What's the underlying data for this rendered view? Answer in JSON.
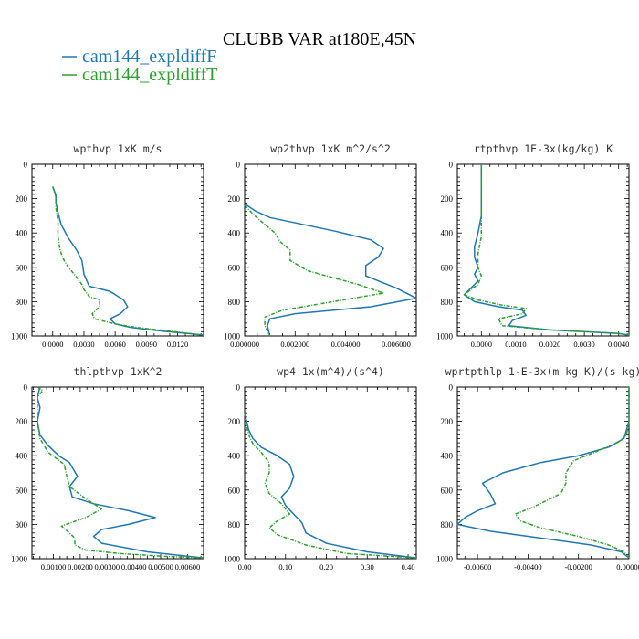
{
  "figure": {
    "title": "CLUBB VAR at180E,45N",
    "legend": [
      {
        "label": "cam144_expldiffF",
        "color": "#1f77b4"
      },
      {
        "label": "cam144_expldiffT",
        "color": "#2ca02c"
      }
    ]
  },
  "chart_data": [
    {
      "type": "line",
      "title": "wpthvp   1xK m/s",
      "xlim": [
        -0.002,
        0.0145
      ],
      "ylim": [
        0,
        1000
      ],
      "xticks": [
        0.0,
        0.003,
        0.006,
        0.009,
        0.012
      ],
      "xticklabels": [
        "0.0000",
        "0.0030",
        "0.0060",
        "0.0090",
        "0.0120"
      ],
      "yticks": [
        0,
        200,
        400,
        600,
        800,
        1000
      ],
      "yticklabels": [
        "0",
        "200",
        "400",
        "600",
        "800",
        "1000"
      ],
      "series": [
        {
          "name": "cam144_expldiffF",
          "x": [
            0.0,
            0.0003,
            0.0003,
            0.0005,
            0.0008,
            0.0015,
            0.0023,
            0.0028,
            0.003,
            0.0035,
            0.0055,
            0.0068,
            0.0072,
            0.0065,
            0.0055,
            0.006,
            0.0075,
            0.0095,
            0.011,
            0.013,
            0.0145
          ],
          "y": [
            130,
            180,
            220,
            280,
            350,
            430,
            500,
            560,
            640,
            710,
            740,
            790,
            830,
            870,
            900,
            930,
            950,
            965,
            975,
            985,
            995
          ]
        },
        {
          "name": "cam144_expldiffT",
          "x": [
            0.0,
            0.0003,
            0.0003,
            0.0005,
            0.0005,
            0.0007,
            0.001,
            0.0015,
            0.0022,
            0.0028,
            0.003,
            0.0035,
            0.0045,
            0.0045,
            0.0038,
            0.004,
            0.006,
            0.008,
            0.011,
            0.0145
          ],
          "y": [
            130,
            190,
            250,
            330,
            420,
            500,
            550,
            600,
            650,
            700,
            730,
            770,
            790,
            830,
            870,
            900,
            930,
            950,
            970,
            995
          ]
        }
      ]
    },
    {
      "type": "line",
      "title": "wp2thvp   1xK m^2/s^2",
      "xlim": [
        0.0,
        0.0068
      ],
      "ylim": [
        0,
        1000
      ],
      "xticks": [
        0.0,
        0.002,
        0.004,
        0.006
      ],
      "xticklabels": [
        "0.000000",
        "0.002000",
        "0.004000",
        "0.006000"
      ],
      "yticks": [
        0,
        200,
        400,
        600,
        800,
        1000
      ],
      "yticklabels": [
        "0",
        "200",
        "400",
        "600",
        "800",
        "1000"
      ],
      "series": [
        {
          "name": "cam144_expldiffF",
          "x": [
            0.0,
            0.0004,
            0.001,
            0.0023,
            0.0036,
            0.005,
            0.0055,
            0.0053,
            0.0048,
            0.0048,
            0.006,
            0.0068,
            0.005,
            0.002,
            0.001,
            0.0009,
            0.001
          ],
          "y": [
            230,
            270,
            310,
            350,
            390,
            440,
            490,
            540,
            590,
            650,
            720,
            780,
            830,
            870,
            900,
            940,
            1000
          ]
        },
        {
          "name": "cam144_expldiffT",
          "x": [
            0.0,
            0.0004,
            0.0008,
            0.0012,
            0.0014,
            0.0018,
            0.0018,
            0.0025,
            0.0045,
            0.0055,
            0.0035,
            0.0015,
            0.0008,
            0.0008,
            0.001
          ],
          "y": [
            240,
            300,
            350,
            400,
            450,
            500,
            560,
            620,
            700,
            750,
            800,
            850,
            890,
            940,
            1000
          ]
        }
      ]
    },
    {
      "type": "line",
      "title": "rtpthvp   1E-3x(kg/kg) K",
      "xlim": [
        -0.0007,
        0.0043
      ],
      "ylim": [
        0,
        1000
      ],
      "xticks": [
        0.0,
        0.001,
        0.002,
        0.003,
        0.004
      ],
      "xticklabels": [
        "0.0000",
        "0.0010",
        "0.0020",
        "0.0030",
        "0.0040"
      ],
      "yticks": [
        0,
        200,
        400,
        600,
        800,
        1000
      ],
      "yticklabels": [
        "0",
        "200",
        "400",
        "600",
        "800",
        "1000"
      ],
      "series": [
        {
          "name": "cam144_expldiffF",
          "x": [
            0.0,
            0.0,
            0.0,
            -0.0001,
            -0.0002,
            -0.0002,
            -0.0001,
            -0.0002,
            -0.0001,
            -0.0003,
            -0.0005,
            -0.0002,
            0.0005,
            0.0012,
            0.0013,
            0.0009,
            0.0008,
            0.002,
            0.004,
            0.0043
          ],
          "y": [
            0,
            150,
            300,
            400,
            480,
            540,
            600,
            640,
            680,
            720,
            760,
            800,
            830,
            850,
            880,
            910,
            940,
            965,
            985,
            995
          ]
        },
        {
          "name": "cam144_expldiffT",
          "x": [
            0.0,
            0.0,
            0.0,
            0.0,
            -0.0001,
            -0.0001,
            0.0,
            -0.0001,
            -0.0003,
            -0.0005,
            -0.0001,
            0.0006,
            0.0013,
            0.0012,
            0.0005,
            0.0006,
            0.002,
            0.004,
            0.0043
          ],
          "y": [
            0,
            150,
            300,
            420,
            520,
            600,
            650,
            700,
            730,
            760,
            790,
            820,
            840,
            870,
            900,
            940,
            965,
            985,
            995
          ]
        }
      ]
    },
    {
      "type": "line",
      "title": "thlpthvp   1xK^2",
      "xlim": [
        0.0002,
        0.0066
      ],
      "ylim": [
        0,
        1000
      ],
      "xticks": [
        0.001,
        0.002,
        0.003,
        0.004,
        0.005,
        0.006
      ],
      "xticklabels": [
        "0.00100",
        "0.00200",
        "0.00300",
        "0.00400",
        "0.00500",
        "0.00600"
      ],
      "yticks": [
        0,
        200,
        400,
        600,
        800,
        1000
      ],
      "yticklabels": [
        "0",
        "200",
        "400",
        "600",
        "800",
        "1000"
      ],
      "series": [
        {
          "name": "cam144_expldiffF",
          "x": [
            0.0005,
            0.0004,
            0.0005,
            0.0004,
            0.0005,
            0.0008,
            0.0012,
            0.0016,
            0.0019,
            0.0016,
            0.0017,
            0.0025,
            0.0038,
            0.0048,
            0.0038,
            0.0028,
            0.0025,
            0.0028,
            0.0045,
            0.0066
          ],
          "y": [
            0,
            60,
            120,
            200,
            280,
            340,
            400,
            440,
            520,
            580,
            640,
            680,
            720,
            760,
            800,
            830,
            870,
            910,
            960,
            995
          ]
        },
        {
          "name": "cam144_expldiffT",
          "x": [
            0.0004,
            0.0006,
            0.0004,
            0.0004,
            0.0005,
            0.0008,
            0.0014,
            0.0015,
            0.0016,
            0.0022,
            0.0028,
            0.0022,
            0.0013,
            0.0016,
            0.0018,
            0.0018,
            0.0022,
            0.0035,
            0.005,
            0.0066
          ],
          "y": [
            0,
            20,
            60,
            200,
            300,
            380,
            450,
            520,
            580,
            650,
            710,
            760,
            810,
            850,
            880,
            920,
            950,
            970,
            985,
            995
          ]
        }
      ]
    },
    {
      "type": "line",
      "title": "wp4   1x(m^4)/(s^4)",
      "xlim": [
        0.0,
        0.42
      ],
      "ylim": [
        0,
        1000
      ],
      "xticks": [
        0.0,
        0.1,
        0.2,
        0.3,
        0.4
      ],
      "xticklabels": [
        "0.00",
        "0.10",
        "0.20",
        "0.30",
        "0.40"
      ],
      "yticks": [
        0,
        200,
        400,
        600,
        800,
        1000
      ],
      "yticklabels": [
        "0",
        "200",
        "400",
        "600",
        "800",
        "1000"
      ],
      "series": [
        {
          "name": "cam144_expldiffF",
          "x": [
            0.0,
            0.005,
            0.01,
            0.02,
            0.04,
            0.08,
            0.11,
            0.12,
            0.11,
            0.09,
            0.1,
            0.12,
            0.14,
            0.15,
            0.2,
            0.3,
            0.42
          ],
          "y": [
            150,
            200,
            250,
            300,
            350,
            400,
            450,
            520,
            590,
            640,
            690,
            740,
            790,
            850,
            910,
            960,
            995
          ]
        },
        {
          "name": "cam144_expldiffT",
          "x": [
            0.0,
            0.005,
            0.01,
            0.02,
            0.04,
            0.06,
            0.06,
            0.05,
            0.06,
            0.09,
            0.11,
            0.08,
            0.06,
            0.08,
            0.15,
            0.25,
            0.42
          ],
          "y": [
            150,
            220,
            280,
            330,
            380,
            440,
            500,
            560,
            620,
            680,
            740,
            780,
            820,
            860,
            920,
            970,
            995
          ]
        }
      ]
    },
    {
      "type": "line",
      "title": "wprtpthlp   1-E-3x(m kg K)/(s kg)",
      "xlim": [
        -0.0068,
        0.0
      ],
      "ylim": [
        0,
        1000
      ],
      "xticks": [
        -0.006,
        -0.004,
        -0.002,
        0.0
      ],
      "xticklabels": [
        "-0.00600",
        "-0.00400",
        "-0.00200",
        "0.00000"
      ],
      "yticks": [
        0,
        200,
        400,
        600,
        800,
        1000
      ],
      "yticklabels": [
        "0",
        "200",
        "400",
        "600",
        "800",
        "1000"
      ],
      "series": [
        {
          "name": "cam144_expldiffF",
          "x": [
            0.0,
            0.0,
            -0.0002,
            -0.0008,
            -0.002,
            -0.0035,
            -0.005,
            -0.0058,
            -0.0055,
            -0.0053,
            -0.006,
            -0.0065,
            -0.0068,
            -0.0055,
            -0.0035,
            -0.0015,
            -0.0003,
            0.0
          ],
          "y": [
            0,
            200,
            300,
            350,
            400,
            440,
            500,
            560,
            620,
            680,
            720,
            760,
            800,
            840,
            880,
            920,
            960,
            995
          ]
        },
        {
          "name": "cam144_expldiffT",
          "x": [
            0.0,
            0.0,
            -0.0001,
            -0.0004,
            -0.0012,
            -0.0022,
            -0.0025,
            -0.0025,
            -0.0027,
            -0.0038,
            -0.0045,
            -0.0043,
            -0.0035,
            -0.002,
            -0.0008,
            -0.0002,
            0.0
          ],
          "y": [
            0,
            200,
            280,
            320,
            370,
            430,
            500,
            560,
            620,
            700,
            740,
            780,
            820,
            870,
            920,
            960,
            995
          ]
        }
      ]
    }
  ]
}
